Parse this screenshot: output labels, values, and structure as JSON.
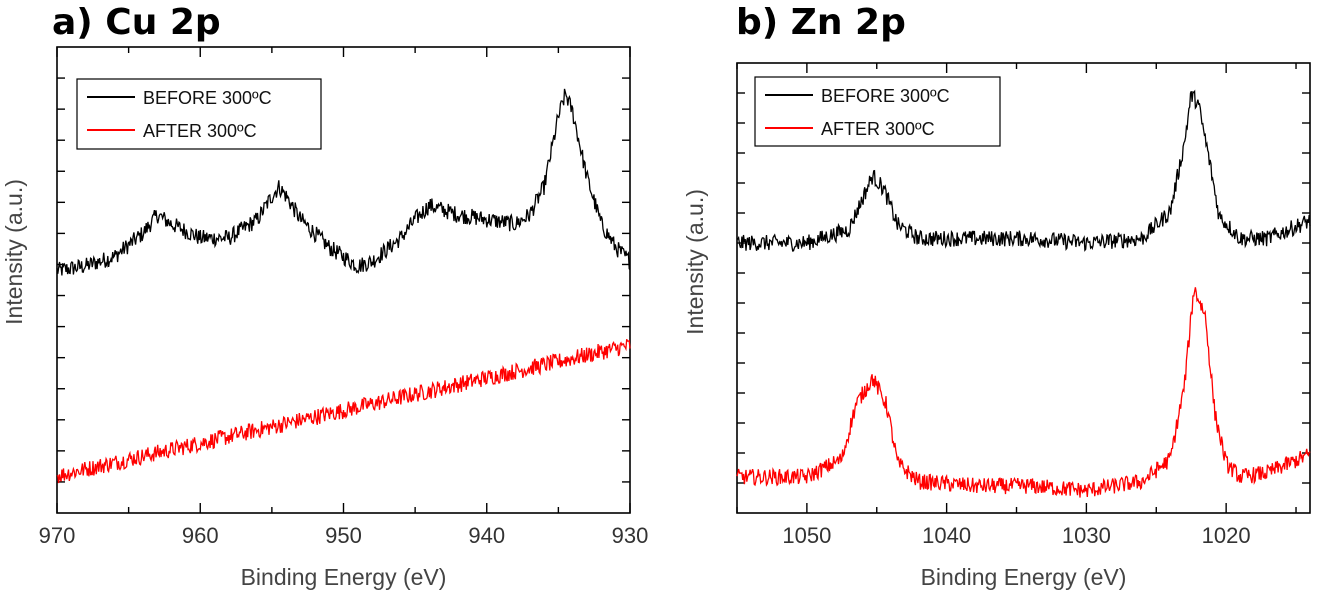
{
  "chart_data": [
    {
      "panel": "a",
      "type": "line",
      "title": "a) Cu 2p",
      "xlabel": "Binding Energy (eV)",
      "ylabel": "Intensity (a.u.)",
      "xlim": [
        970,
        930
      ],
      "x_reversed": true,
      "ylim": [
        0,
        100
      ],
      "xticks": [
        "970",
        "960",
        "950",
        "940",
        "930"
      ],
      "legend_position": "top-left",
      "series": [
        {
          "name": "BEFORE 300ºC",
          "color": "#000000",
          "x": [
            970,
            968,
            966,
            964,
            963,
            962,
            960,
            958,
            956,
            955,
            954.5,
            954,
            953,
            951,
            950,
            949,
            948,
            946,
            945,
            944,
            942,
            940,
            938,
            937,
            936,
            935,
            934.5,
            934,
            933,
            932,
            931,
            930
          ],
          "y": [
            52,
            53,
            55,
            60,
            64,
            62,
            59,
            59,
            63,
            68,
            70,
            68,
            63,
            57,
            55,
            53,
            54,
            59,
            63,
            66,
            64,
            63,
            62,
            64,
            70,
            85,
            90,
            86,
            72,
            62,
            57,
            54
          ]
        },
        {
          "name": "AFTER 300ºC",
          "color": "#ff0000",
          "x": [
            970,
            960,
            950,
            940,
            930
          ],
          "y": [
            8,
            15,
            22,
            29,
            36
          ]
        }
      ]
    },
    {
      "panel": "b",
      "type": "line",
      "title": "b) Zn 2p",
      "xlabel": "Binding Energy (eV)",
      "ylabel": "Intensity (a.u.)",
      "xlim": [
        1055,
        1014
      ],
      "x_reversed": true,
      "ylim": [
        0,
        100
      ],
      "xticks": [
        "1050",
        "1040",
        "1030",
        "1020"
      ],
      "legend_position": "top-left",
      "series": [
        {
          "name": "BEFORE 300ºC",
          "color": "#000000",
          "x": [
            1055,
            1050,
            1047,
            1046,
            1045.3,
            1044.5,
            1043.5,
            1042,
            1038,
            1034,
            1030,
            1026,
            1024,
            1023,
            1022.5,
            1022,
            1021.3,
            1020.5,
            1019,
            1017,
            1014
          ],
          "y": [
            60,
            60,
            63,
            70,
            75,
            72,
            64,
            61,
            61,
            61,
            60,
            61,
            67,
            82,
            93,
            91,
            80,
            66,
            61,
            61,
            65
          ]
        },
        {
          "name": "AFTER 300ºC",
          "color": "#ff0000",
          "x": [
            1055,
            1050,
            1047.5,
            1046.5,
            1045.3,
            1044.3,
            1043.5,
            1042,
            1038,
            1034,
            1030,
            1026,
            1024,
            1023,
            1022.3,
            1021.5,
            1020.8,
            1020,
            1019,
            1017,
            1014
          ],
          "y": [
            8,
            8,
            12,
            24,
            30,
            24,
            11,
            7,
            6,
            6,
            5,
            7,
            12,
            28,
            50,
            44,
            22,
            11,
            8,
            9,
            13
          ]
        }
      ]
    }
  ]
}
